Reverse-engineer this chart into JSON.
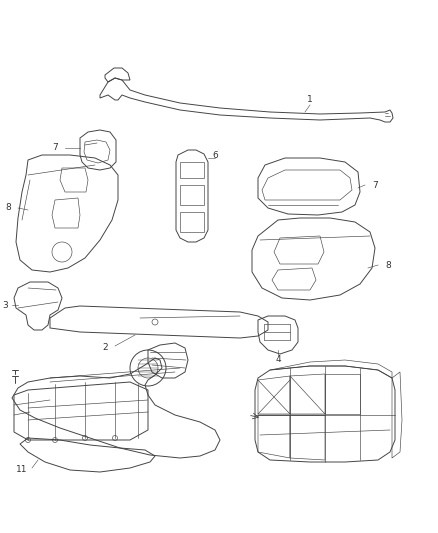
{
  "bg_color": "#ffffff",
  "line_color": "#444444",
  "label_color": "#333333",
  "fig_width": 4.38,
  "fig_height": 5.33,
  "dpi": 100,
  "lw": 0.7,
  "thin_lw": 0.45,
  "label_fs": 6.5,
  "leader_lw": 0.4
}
